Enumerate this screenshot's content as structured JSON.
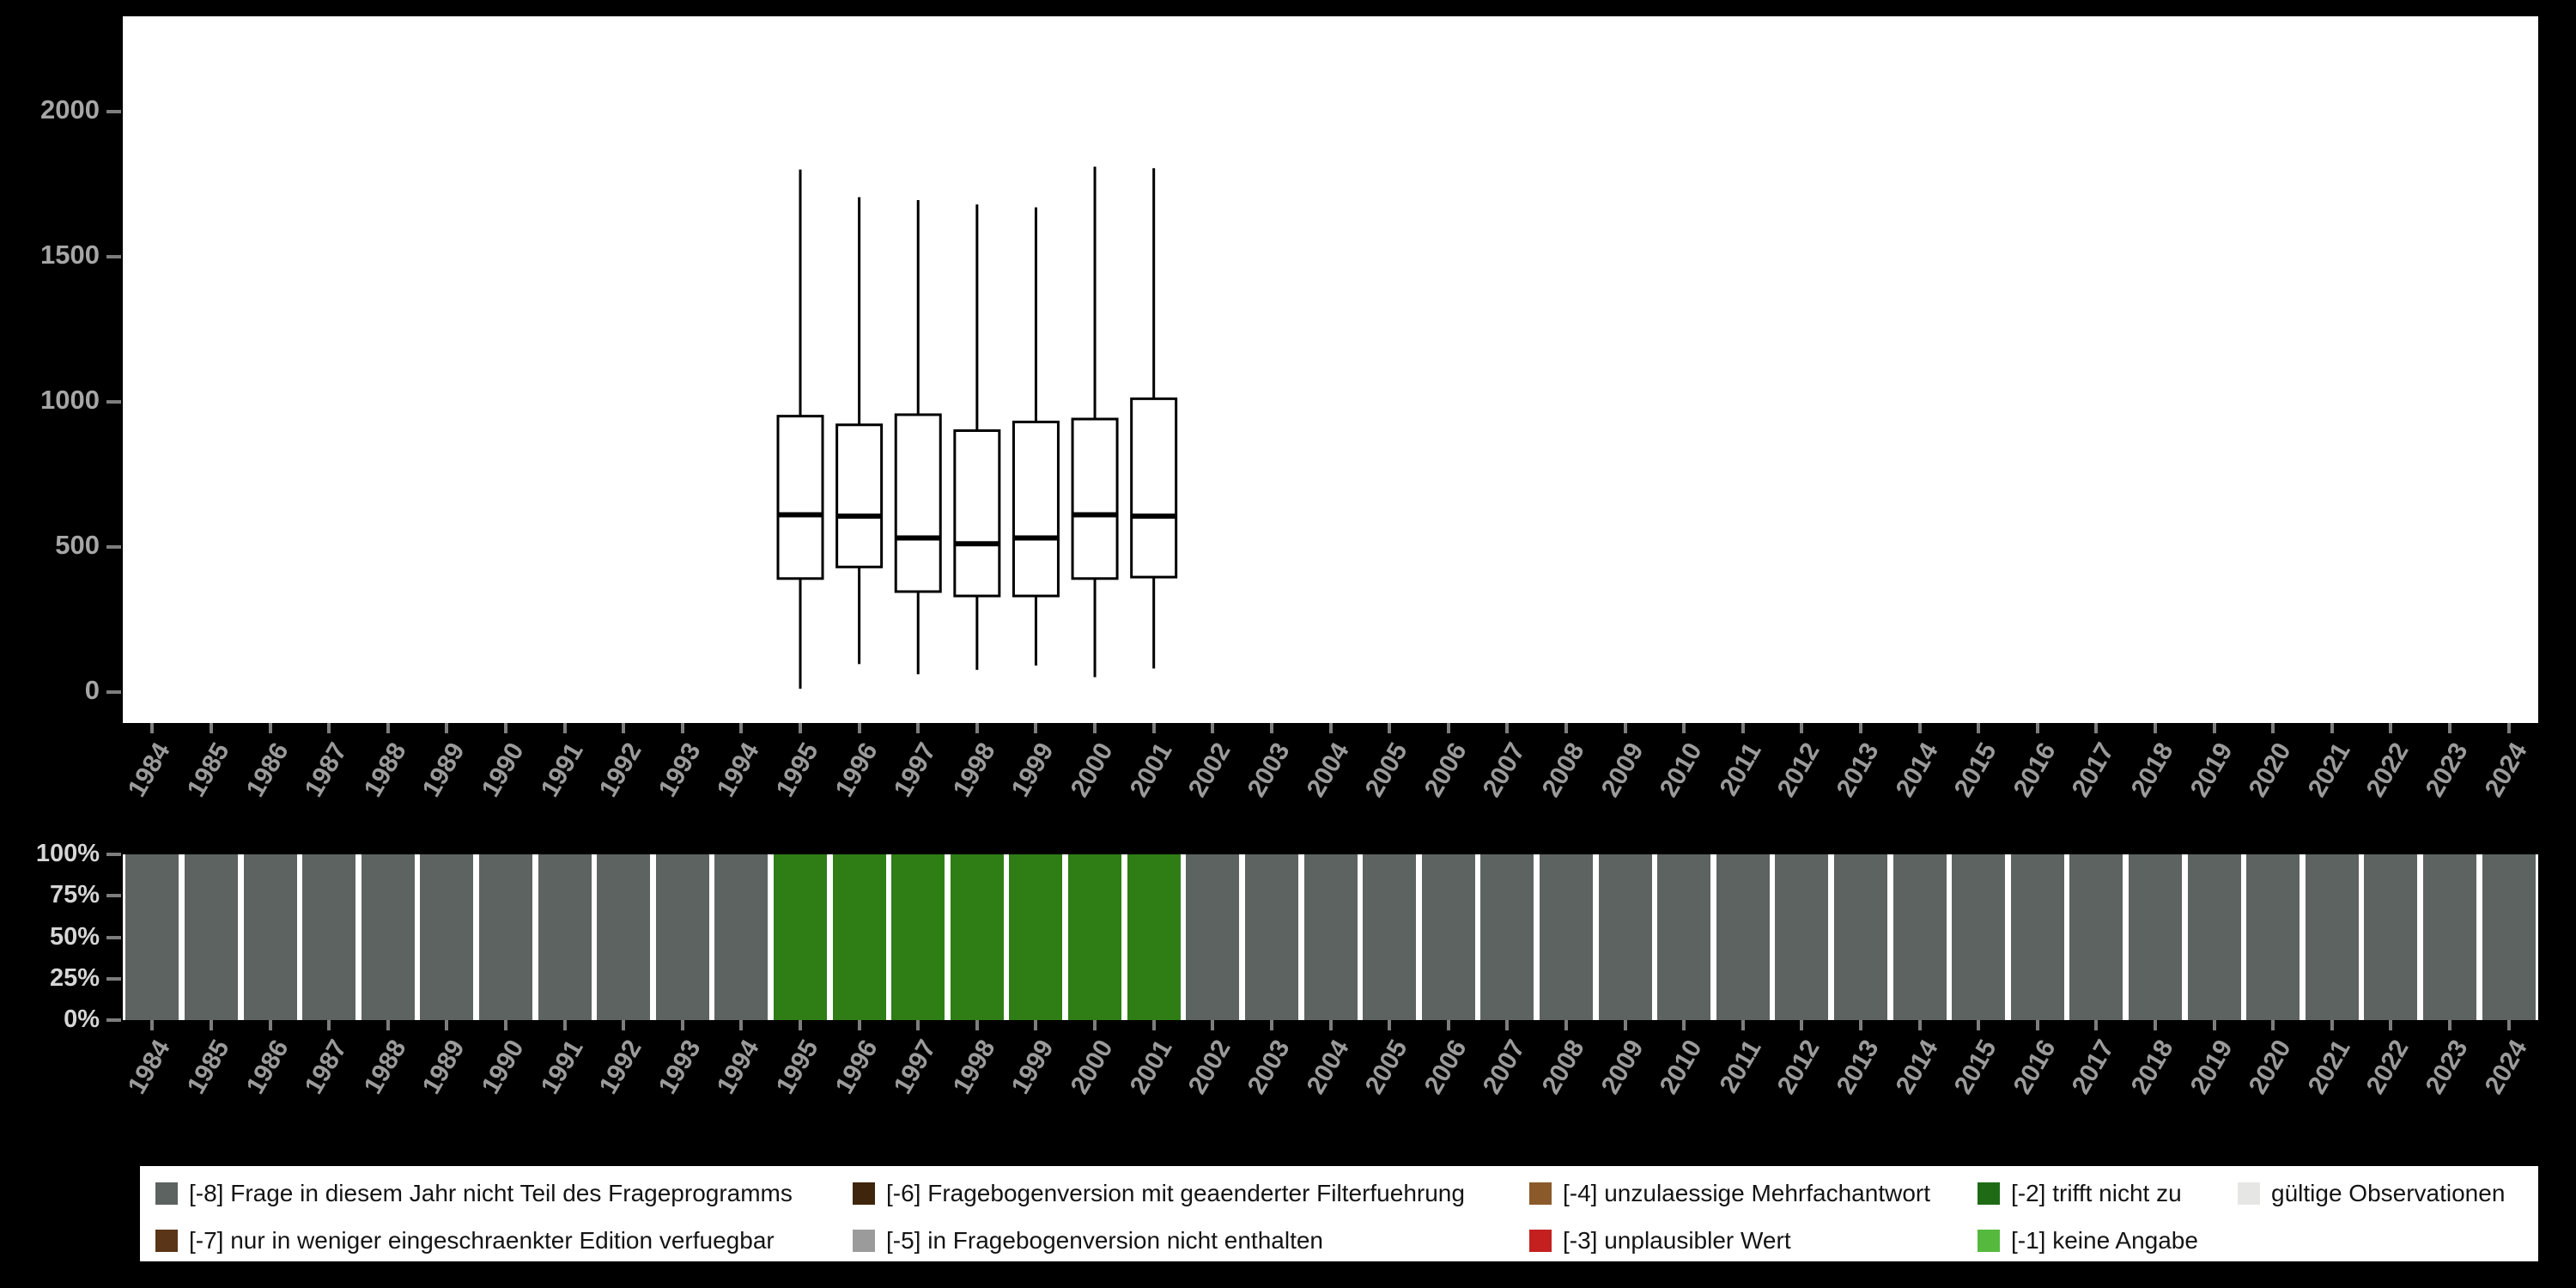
{
  "page": {
    "background": "#000000",
    "panel_background": "#ffffff",
    "axis_text_color": "#9b9b9b",
    "percent_text_color": "#d6d6d6"
  },
  "years": [
    "1984",
    "1985",
    "1986",
    "1987",
    "1988",
    "1989",
    "1990",
    "1991",
    "1992",
    "1993",
    "1994",
    "1995",
    "1996",
    "1997",
    "1998",
    "1999",
    "2000",
    "2001",
    "2002",
    "2003",
    "2004",
    "2005",
    "2006",
    "2007",
    "2008",
    "2009",
    "2010",
    "2011",
    "2012",
    "2013",
    "2014",
    "2015",
    "2016",
    "2017",
    "2018",
    "2019",
    "2020",
    "2021",
    "2022",
    "2023",
    "2024"
  ],
  "chart_data": [
    {
      "type": "boxplot",
      "title": "",
      "xlabel": "",
      "ylabel": "",
      "ylim": [
        0,
        2200
      ],
      "grid": false,
      "yticks": [
        {
          "label": "0",
          "value": 0
        },
        {
          "label": "500",
          "value": 500
        },
        {
          "label": "1000",
          "value": 1000
        },
        {
          "label": "1500",
          "value": 1500
        },
        {
          "label": "2000",
          "value": 2000
        }
      ],
      "note": "x axis spans years 1984-2024; boxplots drawn only for 1995-2001",
      "box_stroke": "#000000",
      "box_fill": "#ffffff",
      "boxes": [
        {
          "year": "1995",
          "whisker_low": 10,
          "q1": 390,
          "median": 610,
          "q3": 950,
          "whisker_high": 1800
        },
        {
          "year": "1996",
          "whisker_low": 95,
          "q1": 430,
          "median": 605,
          "q3": 920,
          "whisker_high": 1705
        },
        {
          "year": "1997",
          "whisker_low": 60,
          "q1": 345,
          "median": 530,
          "q3": 955,
          "whisker_high": 1695
        },
        {
          "year": "1998",
          "whisker_low": 75,
          "q1": 330,
          "median": 510,
          "q3": 900,
          "whisker_high": 1680
        },
        {
          "year": "1999",
          "whisker_low": 90,
          "q1": 330,
          "median": 530,
          "q3": 930,
          "whisker_high": 1670
        },
        {
          "year": "2000",
          "whisker_low": 50,
          "q1": 390,
          "median": 610,
          "q3": 940,
          "whisker_high": 1810
        },
        {
          "year": "2001",
          "whisker_low": 80,
          "q1": 395,
          "median": 605,
          "q3": 1010,
          "whisker_high": 1805
        }
      ]
    },
    {
      "type": "bar",
      "stacked": true,
      "unit": "percent",
      "yticks": [
        {
          "label": "0%",
          "value": 0
        },
        {
          "label": "25%",
          "value": 25
        },
        {
          "label": "50%",
          "value": 50
        },
        {
          "label": "75%",
          "value": 75
        },
        {
          "label": "100%",
          "value": 100
        }
      ],
      "bars": [
        {
          "year": "1984",
          "segments": [
            {
              "color": "#5d6360",
              "pct": 100
            }
          ]
        },
        {
          "year": "1985",
          "segments": [
            {
              "color": "#5d6360",
              "pct": 100
            }
          ]
        },
        {
          "year": "1986",
          "segments": [
            {
              "color": "#5d6360",
              "pct": 100
            }
          ]
        },
        {
          "year": "1987",
          "segments": [
            {
              "color": "#5d6360",
              "pct": 100
            }
          ]
        },
        {
          "year": "1988",
          "segments": [
            {
              "color": "#5d6360",
              "pct": 100
            }
          ]
        },
        {
          "year": "1989",
          "segments": [
            {
              "color": "#5d6360",
              "pct": 100
            }
          ]
        },
        {
          "year": "1990",
          "segments": [
            {
              "color": "#5d6360",
              "pct": 100
            }
          ]
        },
        {
          "year": "1991",
          "segments": [
            {
              "color": "#5d6360",
              "pct": 100
            }
          ]
        },
        {
          "year": "1992",
          "segments": [
            {
              "color": "#5d6360",
              "pct": 100
            }
          ]
        },
        {
          "year": "1993",
          "segments": [
            {
              "color": "#5d6360",
              "pct": 100
            }
          ]
        },
        {
          "year": "1994",
          "segments": [
            {
              "color": "#5d6360",
              "pct": 100
            }
          ]
        },
        {
          "year": "1995",
          "segments": [
            {
              "color": "#2e7d15",
              "pct": 100
            }
          ]
        },
        {
          "year": "1996",
          "segments": [
            {
              "color": "#2e7d15",
              "pct": 100
            }
          ]
        },
        {
          "year": "1997",
          "segments": [
            {
              "color": "#2e7d15",
              "pct": 100
            }
          ]
        },
        {
          "year": "1998",
          "segments": [
            {
              "color": "#2e7d15",
              "pct": 100
            }
          ]
        },
        {
          "year": "1999",
          "segments": [
            {
              "color": "#2e7d15",
              "pct": 100
            }
          ]
        },
        {
          "year": "2000",
          "segments": [
            {
              "color": "#2e7d15",
              "pct": 100
            }
          ]
        },
        {
          "year": "2001",
          "segments": [
            {
              "color": "#2e7d15",
              "pct": 100
            }
          ]
        },
        {
          "year": "2002",
          "segments": [
            {
              "color": "#5d6360",
              "pct": 100
            }
          ]
        },
        {
          "year": "2003",
          "segments": [
            {
              "color": "#5d6360",
              "pct": 100
            }
          ]
        },
        {
          "year": "2004",
          "segments": [
            {
              "color": "#5d6360",
              "pct": 100
            }
          ]
        },
        {
          "year": "2005",
          "segments": [
            {
              "color": "#5d6360",
              "pct": 100
            }
          ]
        },
        {
          "year": "2006",
          "segments": [
            {
              "color": "#5d6360",
              "pct": 100
            }
          ]
        },
        {
          "year": "2007",
          "segments": [
            {
              "color": "#5d6360",
              "pct": 100
            }
          ]
        },
        {
          "year": "2008",
          "segments": [
            {
              "color": "#5d6360",
              "pct": 100
            }
          ]
        },
        {
          "year": "2009",
          "segments": [
            {
              "color": "#5d6360",
              "pct": 100
            }
          ]
        },
        {
          "year": "2010",
          "segments": [
            {
              "color": "#5d6360",
              "pct": 100
            }
          ]
        },
        {
          "year": "2011",
          "segments": [
            {
              "color": "#5d6360",
              "pct": 100
            }
          ]
        },
        {
          "year": "2012",
          "segments": [
            {
              "color": "#5d6360",
              "pct": 100
            }
          ]
        },
        {
          "year": "2013",
          "segments": [
            {
              "color": "#5d6360",
              "pct": 100
            }
          ]
        },
        {
          "year": "2014",
          "segments": [
            {
              "color": "#5d6360",
              "pct": 100
            }
          ]
        },
        {
          "year": "2015",
          "segments": [
            {
              "color": "#5d6360",
              "pct": 100
            }
          ]
        },
        {
          "year": "2016",
          "segments": [
            {
              "color": "#5d6360",
              "pct": 100
            }
          ]
        },
        {
          "year": "2017",
          "segments": [
            {
              "color": "#5d6360",
              "pct": 100
            }
          ]
        },
        {
          "year": "2018",
          "segments": [
            {
              "color": "#5d6360",
              "pct": 100
            }
          ]
        },
        {
          "year": "2019",
          "segments": [
            {
              "color": "#5d6360",
              "pct": 100
            }
          ]
        },
        {
          "year": "2020",
          "segments": [
            {
              "color": "#5d6360",
              "pct": 100
            }
          ]
        },
        {
          "year": "2021",
          "segments": [
            {
              "color": "#5d6360",
              "pct": 100
            }
          ]
        },
        {
          "year": "2022",
          "segments": [
            {
              "color": "#5d6360",
              "pct": 100
            }
          ]
        },
        {
          "year": "2023",
          "segments": [
            {
              "color": "#5d6360",
              "pct": 100
            }
          ]
        },
        {
          "year": "2024",
          "segments": [
            {
              "color": "#5d6360",
              "pct": 100
            }
          ]
        }
      ]
    }
  ],
  "legend": {
    "rows": [
      [
        {
          "label": "[-8] Frage in diesem Jahr nicht Teil des Frageprogramms",
          "color": "#5d6360"
        },
        {
          "label": "[-6] Fragebogenversion mit geaenderter Filterfuehrung",
          "color": "#3f250c"
        },
        {
          "label": "[-4] unzulaessige Mehrfachantwort",
          "color": "#8b5a2b"
        },
        {
          "label": "[-2] trifft nicht zu",
          "color": "#1f6b15"
        },
        {
          "label": "gültige Observationen",
          "color": "#e6e6e4"
        }
      ],
      [
        {
          "label": "[-7] nur in weniger eingeschraenkter Edition verfuegbar",
          "color": "#5a3517"
        },
        {
          "label": "[-5] in Fragebogenversion nicht enthalten",
          "color": "#9b9b9b"
        },
        {
          "label": "[-3] unplausibler Wert",
          "color": "#c42020"
        },
        {
          "label": "[-1] keine Angabe",
          "color": "#55b93e"
        }
      ]
    ]
  }
}
